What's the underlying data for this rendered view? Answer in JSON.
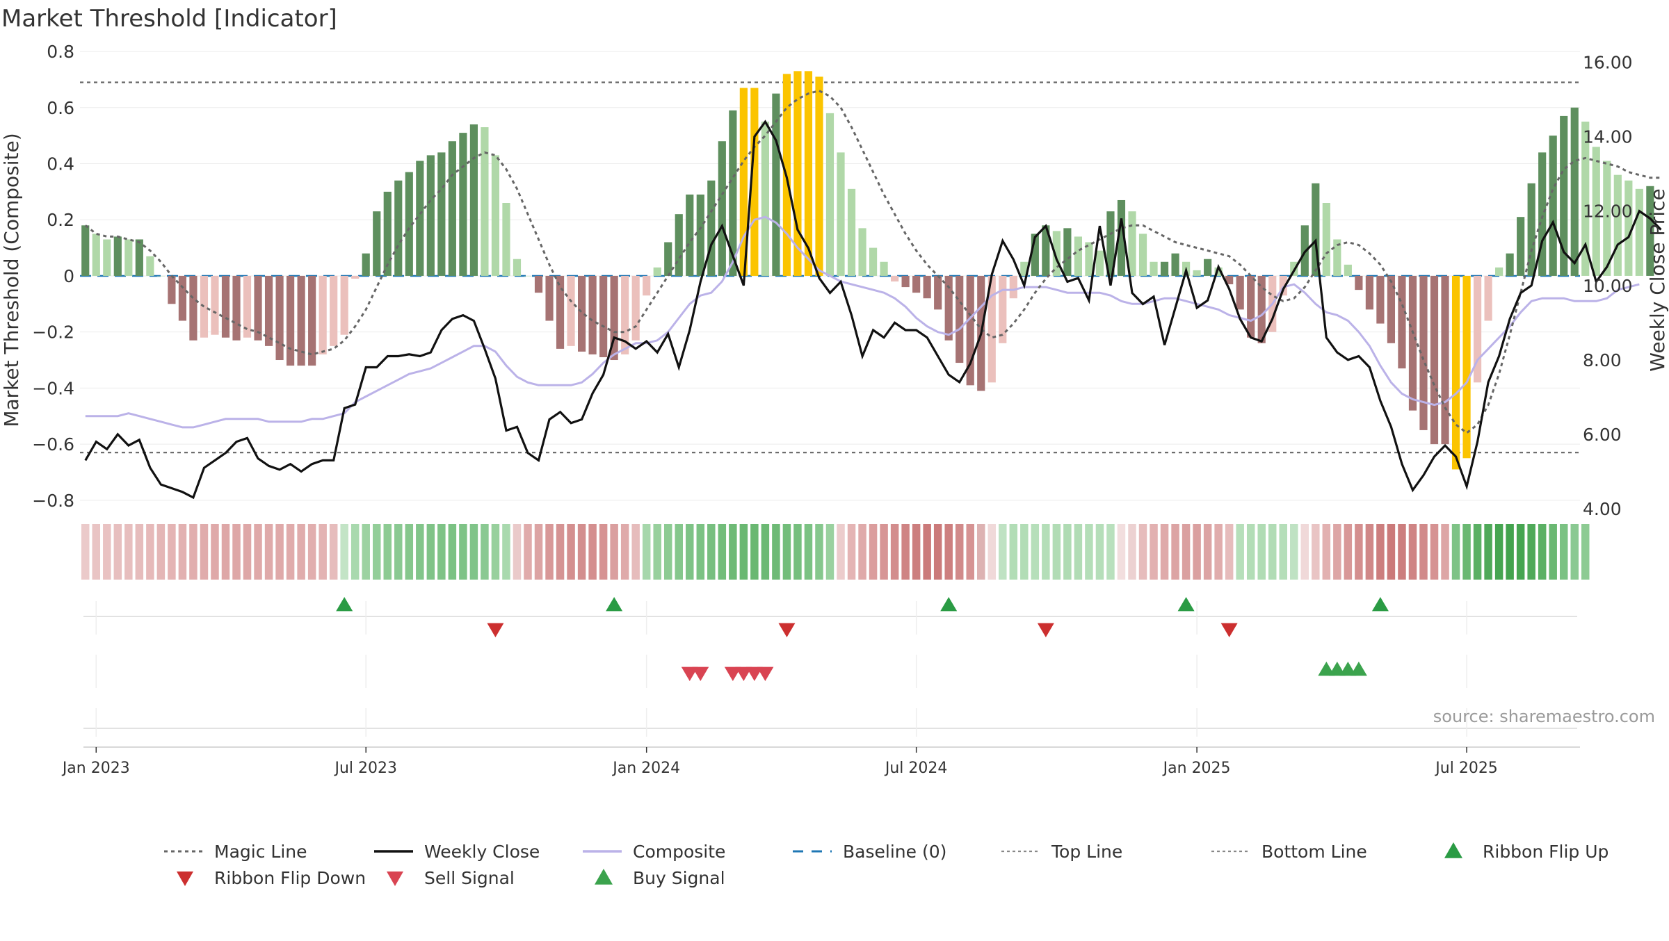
{
  "chart_data": {
    "type": "bar",
    "title": "Market Threshold [Indicator]",
    "ylabel": "Market Threshold (Composite)",
    "y2label": "Weekly Close Price",
    "ylim": [
      -0.85,
      0.82
    ],
    "y2lim": [
      3.85,
      16.44
    ],
    "yticks": [
      0.8,
      0.6,
      0.4,
      0.2,
      0,
      -0.2,
      -0.4,
      -0.6,
      -0.8
    ],
    "ytick_labels": [
      "0.8",
      "0.6",
      "0.4",
      "0.2",
      "0",
      "−0.2",
      "−0.4",
      "−0.6",
      "−0.8"
    ],
    "y2ticks": [
      16,
      14,
      12,
      10,
      8,
      6,
      4
    ],
    "y2tick_labels": [
      "16.00",
      "14.00",
      "12.00",
      "10.00",
      "8.00",
      "6.00",
      "4.00"
    ],
    "top_line": 0.69,
    "bottom_line": -0.63,
    "x_range": [
      -0.5,
      138.5
    ],
    "xticks": [
      {
        "pos": 1,
        "label": "Jan 2023"
      },
      {
        "pos": 26,
        "label": "Jul 2023"
      },
      {
        "pos": 52,
        "label": "Jan 2024"
      },
      {
        "pos": 77,
        "label": "Jul 2024"
      },
      {
        "pos": 103,
        "label": "Jan 2025"
      },
      {
        "pos": 128,
        "label": "Jul 2025"
      }
    ],
    "series": [
      {
        "name": "Composite Histogram",
        "values": [
          0.18,
          0.15,
          0.13,
          0.14,
          0.13,
          0.13,
          0.07,
          0,
          -0.1,
          -0.16,
          -0.23,
          -0.22,
          -0.21,
          -0.22,
          -0.23,
          -0.22,
          -0.23,
          -0.25,
          -0.3,
          -0.32,
          -0.32,
          -0.32,
          -0.28,
          -0.25,
          -0.21,
          -0.01,
          0.08,
          0.23,
          0.3,
          0.34,
          0.37,
          0.41,
          0.43,
          0.44,
          0.48,
          0.51,
          0.54,
          0.53,
          0.43,
          0.26,
          0.06,
          0,
          -0.06,
          -0.16,
          -0.26,
          -0.25,
          -0.27,
          -0.28,
          -0.29,
          -0.3,
          -0.28,
          -0.23,
          -0.07,
          0.03,
          0.12,
          0.22,
          0.29,
          0.29,
          0.34,
          0.48,
          0.59,
          0.67,
          0.67,
          0.55,
          0.65,
          0.72,
          0.73,
          0.73,
          0.71,
          0.58,
          0.44,
          0.31,
          0.17,
          0.1,
          0.05,
          -0.02,
          -0.04,
          -0.06,
          -0.08,
          -0.12,
          -0.23,
          -0.31,
          -0.39,
          -0.41,
          -0.38,
          -0.24,
          -0.08,
          0.05,
          0.15,
          0.18,
          0.16,
          0.17,
          0.14,
          0.12,
          0.09,
          0.23,
          0.27,
          0.23,
          0.15,
          0.05,
          0.05,
          0.08,
          0.05,
          0.02,
          0.06,
          0.03,
          -0.03,
          -0.12,
          -0.22,
          -0.24,
          -0.2,
          -0.07,
          0.05,
          0.18,
          0.33,
          0.26,
          0.13,
          0.04,
          -0.05,
          -0.12,
          -0.17,
          -0.24,
          -0.33,
          -0.48,
          -0.55,
          -0.6,
          -0.6,
          -0.69,
          -0.65,
          -0.38,
          -0.16,
          0.03,
          0.08,
          0.21,
          0.33,
          0.44,
          0.5,
          0.57,
          0.6,
          0.55,
          0.46,
          0.41,
          0.36,
          0.34,
          0.31,
          0.32
        ]
      },
      {
        "name": "Magic Line",
        "values": [
          0.18,
          0.15,
          0.14,
          0.14,
          0.13,
          0.12,
          0.09,
          0.05,
          0,
          -0.04,
          -0.08,
          -0.11,
          -0.13,
          -0.15,
          -0.17,
          -0.19,
          -0.2,
          -0.22,
          -0.24,
          -0.26,
          -0.27,
          -0.28,
          -0.27,
          -0.26,
          -0.23,
          -0.18,
          -0.12,
          -0.04,
          0.04,
          0.11,
          0.17,
          0.22,
          0.27,
          0.31,
          0.36,
          0.39,
          0.42,
          0.44,
          0.43,
          0.38,
          0.31,
          0.22,
          0.13,
          0.04,
          -0.04,
          -0.09,
          -0.13,
          -0.16,
          -0.18,
          -0.2,
          -0.2,
          -0.18,
          -0.12,
          -0.06,
          0,
          0.06,
          0.12,
          0.17,
          0.23,
          0.29,
          0.35,
          0.41,
          0.46,
          0.5,
          0.55,
          0.6,
          0.63,
          0.65,
          0.66,
          0.64,
          0.6,
          0.53,
          0.45,
          0.37,
          0.29,
          0.22,
          0.15,
          0.09,
          0.04,
          0,
          -0.04,
          -0.09,
          -0.14,
          -0.19,
          -0.22,
          -0.21,
          -0.17,
          -0.12,
          -0.06,
          -0.01,
          0.03,
          0.06,
          0.09,
          0.11,
          0.13,
          0.15,
          0.17,
          0.18,
          0.18,
          0.16,
          0.14,
          0.12,
          0.11,
          0.1,
          0.09,
          0.08,
          0.07,
          0.04,
          0,
          -0.04,
          -0.07,
          -0.09,
          -0.08,
          -0.04,
          0.02,
          0.08,
          0.11,
          0.12,
          0.11,
          0.08,
          0.04,
          -0.02,
          -0.1,
          -0.2,
          -0.3,
          -0.39,
          -0.47,
          -0.53,
          -0.56,
          -0.53,
          -0.46,
          -0.35,
          -0.21,
          -0.06,
          0.09,
          0.21,
          0.31,
          0.38,
          0.41,
          0.42,
          0.41,
          0.4,
          0.39,
          0.37,
          0.36,
          0.35,
          0.35
        ]
      },
      {
        "name": "Composite",
        "values": [
          -0.5,
          -0.5,
          -0.5,
          -0.5,
          -0.49,
          -0.5,
          -0.51,
          -0.52,
          -0.53,
          -0.54,
          -0.54,
          -0.53,
          -0.52,
          -0.51,
          -0.51,
          -0.51,
          -0.51,
          -0.52,
          -0.52,
          -0.52,
          -0.52,
          -0.51,
          -0.51,
          -0.5,
          -0.49,
          -0.45,
          -0.43,
          -0.41,
          -0.39,
          -0.37,
          -0.35,
          -0.34,
          -0.33,
          -0.31,
          -0.29,
          -0.27,
          -0.25,
          -0.25,
          -0.27,
          -0.32,
          -0.36,
          -0.38,
          -0.39,
          -0.39,
          -0.39,
          -0.39,
          -0.38,
          -0.35,
          -0.31,
          -0.28,
          -0.26,
          -0.24,
          -0.24,
          -0.23,
          -0.2,
          -0.15,
          -0.1,
          -0.07,
          -0.06,
          -0.02,
          0.05,
          0.14,
          0.2,
          0.21,
          0.19,
          0.15,
          0.1,
          0.06,
          0.02,
          0,
          -0.02,
          -0.03,
          -0.04,
          -0.05,
          -0.06,
          -0.08,
          -0.11,
          -0.15,
          -0.18,
          -0.2,
          -0.21,
          -0.19,
          -0.15,
          -0.11,
          -0.07,
          -0.05,
          -0.05,
          -0.04,
          -0.04,
          -0.04,
          -0.05,
          -0.06,
          -0.06,
          -0.06,
          -0.06,
          -0.07,
          -0.09,
          -0.1,
          -0.1,
          -0.09,
          -0.08,
          -0.08,
          -0.09,
          -0.1,
          -0.11,
          -0.12,
          -0.14,
          -0.15,
          -0.16,
          -0.14,
          -0.1,
          -0.04,
          -0.03,
          -0.06,
          -0.1,
          -0.13,
          -0.14,
          -0.16,
          -0.2,
          -0.25,
          -0.32,
          -0.38,
          -0.42,
          -0.44,
          -0.45,
          -0.46,
          -0.45,
          -0.42,
          -0.38,
          -0.3,
          -0.26,
          -0.22,
          -0.18,
          -0.13,
          -0.09,
          -0.08,
          -0.08,
          -0.08,
          -0.09,
          -0.09,
          -0.09,
          -0.08,
          -0.05,
          -0.04,
          -0.03
        ]
      },
      {
        "name": "Weekly Close",
        "values": [
          5.3,
          5.8,
          5.6,
          6.0,
          5.7,
          5.85,
          5.1,
          4.65,
          4.55,
          4.45,
          4.3,
          5.1,
          5.3,
          5.5,
          5.8,
          5.9,
          5.35,
          5.15,
          5.05,
          5.2,
          5.0,
          5.2,
          5.3,
          5.3,
          6.7,
          6.8,
          7.8,
          7.8,
          8.1,
          8.1,
          8.15,
          8.1,
          8.2,
          8.8,
          9.1,
          9.2,
          9.05,
          8.3,
          7.5,
          6.1,
          6.2,
          5.5,
          5.3,
          6.4,
          6.6,
          6.3,
          6.4,
          7.1,
          7.6,
          8.6,
          8.5,
          8.3,
          8.5,
          8.2,
          8.7,
          7.8,
          8.8,
          10.1,
          11.1,
          11.6,
          10.8,
          10,
          14,
          14.4,
          13.9,
          12.9,
          11.5,
          11.0,
          10.2,
          9.8,
          10.1,
          9.2,
          8.1,
          8.8,
          8.6,
          9.0,
          8.8,
          8.8,
          8.6,
          8.1,
          7.6,
          7.4,
          7.9,
          8.7,
          10.3,
          11.2,
          10.7,
          10.0,
          11.3,
          11.6,
          10.7,
          10.1,
          10.2,
          9.6,
          11.6,
          10.0,
          11.8,
          9.8,
          9.5,
          9.7,
          8.4,
          9.4,
          10.4,
          9.4,
          9.6,
          10.5,
          9.9,
          9.1,
          8.6,
          8.5,
          9.1,
          9.9,
          10.4,
          10.9,
          11.2,
          8.6,
          8.2,
          8.0,
          8.1,
          7.8,
          6.9,
          6.2,
          5.2,
          4.5,
          4.9,
          5.4,
          5.7,
          5.4,
          4.6,
          5.8,
          7.4,
          8.1,
          9.1,
          9.8,
          10.0,
          11.2,
          11.7,
          10.9,
          10.6,
          11.1,
          10.1,
          10.5,
          11.1,
          11.3,
          12.0,
          11.8,
          11.5
        ]
      }
    ],
    "ribbon": [
      "#ebcaca",
      "#e9c4c4",
      "#e9c2c2",
      "#e7bfbf",
      "#e7bebe",
      "#e6bcbc",
      "#e6b9b9",
      "#e4b6b6",
      "#e4b4b4",
      "#e2b1b1",
      "#e1aeae",
      "#e0acac",
      "#dfa9a9",
      "#dea7a7",
      "#dea7a7",
      "#dea7a7",
      "#dfa9a9",
      "#dfaaaa",
      "#dfa9a9",
      "#e0abab",
      "#e0acac",
      "#e1aeae",
      "#e3b3b3",
      "#e6bcbc",
      "#c3e4c6",
      "#a9d9ae",
      "#9cd2a1",
      "#93ce99",
      "#8dcb93",
      "#8ac992",
      "#86c78d",
      "#82c58a",
      "#7fc387",
      "#7ec386",
      "#7bc283",
      "#7ec386",
      "#80c489",
      "#8ac992",
      "#98d09d",
      "#a9d9ae",
      "#eacaca",
      "#e0abab",
      "#dca4a4",
      "#d89898",
      "#d59393",
      "#d48f8f",
      "#d38e8e",
      "#d48f8f",
      "#d69393",
      "#da9f9f",
      "#dfaaaa",
      "#e6bcbc",
      "#a6d7ab",
      "#98d09d",
      "#8dcb93",
      "#85c78c",
      "#7ec386",
      "#7bc283",
      "#77bf7f",
      "#72bd7a",
      "#6eba76",
      "#6ab872",
      "#6ab872",
      "#6cb974",
      "#6eba76",
      "#72bd7a",
      "#76bf7e",
      "#7bc283",
      "#86c78d",
      "#9ad19f",
      "#eccccc",
      "#e4b4b4",
      "#dfaaaa",
      "#db9d9d",
      "#d79595",
      "#d38d8d",
      "#cf8484",
      "#cc7e7e",
      "#cb7a7a",
      "#cb7a7a",
      "#cd7f7f",
      "#d18a8a",
      "#d69393",
      "#ddb2b2",
      "#f0d9d9",
      "#bfe2c3",
      "#b2ddb6",
      "#b2ddb6",
      "#b6dfba",
      "#b4deb8",
      "#b1dcb5",
      "#afdbb3",
      "#b1dcb5",
      "#b4deb8",
      "#b5deb9",
      "#b9e0bd",
      "#f2dede",
      "#ecd1d1",
      "#e6bcbc",
      "#e2b1b1",
      "#dfaaaa",
      "#dca4a4",
      "#daa0a0",
      "#daa0a0",
      "#dca4a4",
      "#e0acac",
      "#e6bcbc",
      "#b6dfba",
      "#b2ddb6",
      "#b0dcb4",
      "#b1dcb5",
      "#b5deb9",
      "#bfe2c3",
      "#f0d9d9",
      "#e9c4c4",
      "#e2b1b1",
      "#dda6a6",
      "#d89898",
      "#d48f8f",
      "#d08888",
      "#cc7e7e",
      "#cb7a7a",
      "#cc7e7e",
      "#cf8484",
      "#d18a8a",
      "#d69393",
      "#dda6a6",
      "#7ec386",
      "#6ab872",
      "#5bb064",
      "#4fa959",
      "#46a551",
      "#43a34e",
      "#46a551",
      "#4fa959",
      "#5bb064",
      "#6ab872",
      "#7bc283",
      "#8ac992",
      "#8dcb93"
    ],
    "ribbon_flip_up": [
      24,
      49,
      80,
      102,
      120
    ],
    "ribbon_flip_down": [
      38,
      65,
      89,
      106
    ],
    "sell_signal": [
      56,
      57,
      60,
      61,
      62,
      63
    ],
    "buy_signal": [
      115,
      116,
      117,
      118
    ],
    "legend": [
      {
        "label": "Magic Line",
        "kind": "dotted-line"
      },
      {
        "label": "Weekly Close",
        "kind": "solid-line"
      },
      {
        "label": "Composite",
        "kind": "lavender-line"
      },
      {
        "label": "Baseline (0)",
        "kind": "dashed-line"
      },
      {
        "label": "Top Line",
        "kind": "dashed-grey"
      },
      {
        "label": "Bottom Line",
        "kind": "dashed-grey"
      },
      {
        "label": "Ribbon Flip Up",
        "kind": "triangle-up-green"
      },
      {
        "label": "Ribbon Flip Down",
        "kind": "triangle-down-red"
      },
      {
        "label": "Sell Signal",
        "kind": "triangle-down-lightred"
      },
      {
        "label": "Buy Signal",
        "kind": "triangle-up-lightgreen"
      }
    ],
    "source": "source: sharemaestro.com",
    "colors": {
      "bar_pos_strong": "#5e8f5e",
      "bar_pos_weak": "#b0d8a8",
      "bar_neg_strong": "#a67373",
      "bar_neg_weak": "#ebc0bc",
      "bar_extreme": "#fbc400",
      "magic_line": "#666666",
      "weekly_close": "#111111",
      "composite": "#bbb2e8",
      "baseline": "#1f77b4",
      "ribbon_flip_up": "#2a9b44",
      "ribbon_flip_down": "#cc2f2f",
      "sell_signal": "#d94452",
      "buy_signal": "#3ba34d"
    }
  }
}
